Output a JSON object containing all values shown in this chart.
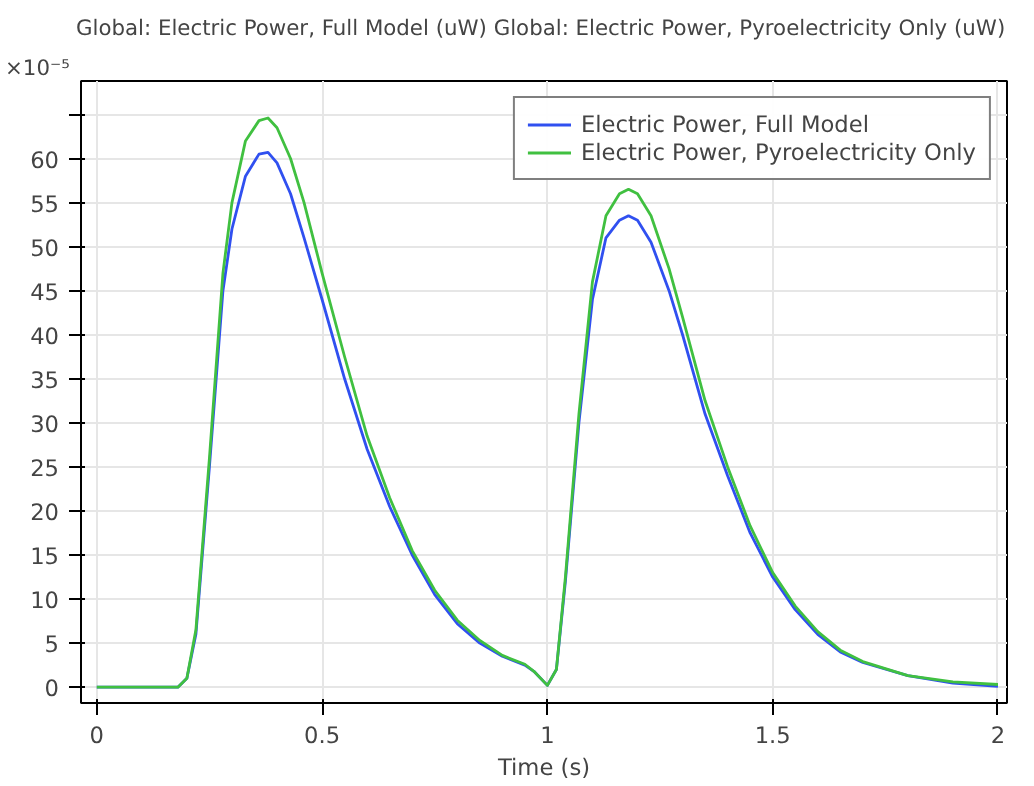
{
  "chart_data": {
    "type": "line",
    "title": "Global: Electric Power, Full Model (uW)  Global: Electric Power, Pyroelectricity Only (uW)",
    "xlabel": "Time (s)",
    "annotations": [
      "×10⁻⁵"
    ],
    "x": [
      0,
      0.18,
      0.2,
      0.22,
      0.25,
      0.28,
      0.3,
      0.33,
      0.36,
      0.38,
      0.4,
      0.43,
      0.46,
      0.5,
      0.55,
      0.6,
      0.65,
      0.7,
      0.75,
      0.8,
      0.85,
      0.9,
      0.95,
      0.97,
      1.0,
      1.02,
      1.04,
      1.07,
      1.1,
      1.13,
      1.16,
      1.18,
      1.2,
      1.23,
      1.27,
      1.3,
      1.35,
      1.4,
      1.45,
      1.5,
      1.55,
      1.6,
      1.65,
      1.7,
      1.8,
      1.9,
      2.0
    ],
    "series": [
      {
        "name": "Electric Power, Full Model",
        "color": "#3050f0",
        "values": [
          0,
          0,
          1,
          6,
          25,
          45,
          52,
          58,
          60.5,
          60.7,
          59.5,
          56,
          51,
          44,
          35,
          27,
          20.5,
          15,
          10.5,
          7.2,
          5,
          3.5,
          2.5,
          1.8,
          0.2,
          2,
          12,
          30,
          44,
          51,
          53,
          53.5,
          53,
          50.5,
          45,
          40,
          31,
          24,
          17.5,
          12.5,
          8.8,
          6,
          4,
          2.8,
          1.3,
          0.45,
          0.1
        ]
      },
      {
        "name": "Electric Power, Pyroelectricity Only",
        "color": "#40c040",
        "values": [
          0,
          0,
          1,
          6.5,
          26,
          47,
          55,
          62,
          64.3,
          64.6,
          63.5,
          60,
          55,
          47,
          37.5,
          28.5,
          21.5,
          15.5,
          11,
          7.6,
          5.3,
          3.6,
          2.6,
          1.8,
          0.2,
          2,
          12.5,
          31,
          46,
          53.5,
          56,
          56.5,
          56,
          53.5,
          47.5,
          42,
          32.5,
          25,
          18.3,
          13,
          9.2,
          6.3,
          4.2,
          2.9,
          1.3,
          0.6,
          0.3
        ]
      }
    ],
    "xlim": [
      -0.035,
      2.02
    ],
    "ylim": [
      -1.8,
      68.8
    ],
    "xticks": [
      0,
      0.5,
      1,
      1.5,
      2
    ],
    "yticks": [
      0,
      5,
      10,
      15,
      20,
      25,
      30,
      35,
      40,
      45,
      50,
      55,
      60,
      {
        "value": 65,
        "label": null
      }
    ],
    "grid": true,
    "legend": "top right",
    "marker": "none",
    "line_style": "solid"
  }
}
